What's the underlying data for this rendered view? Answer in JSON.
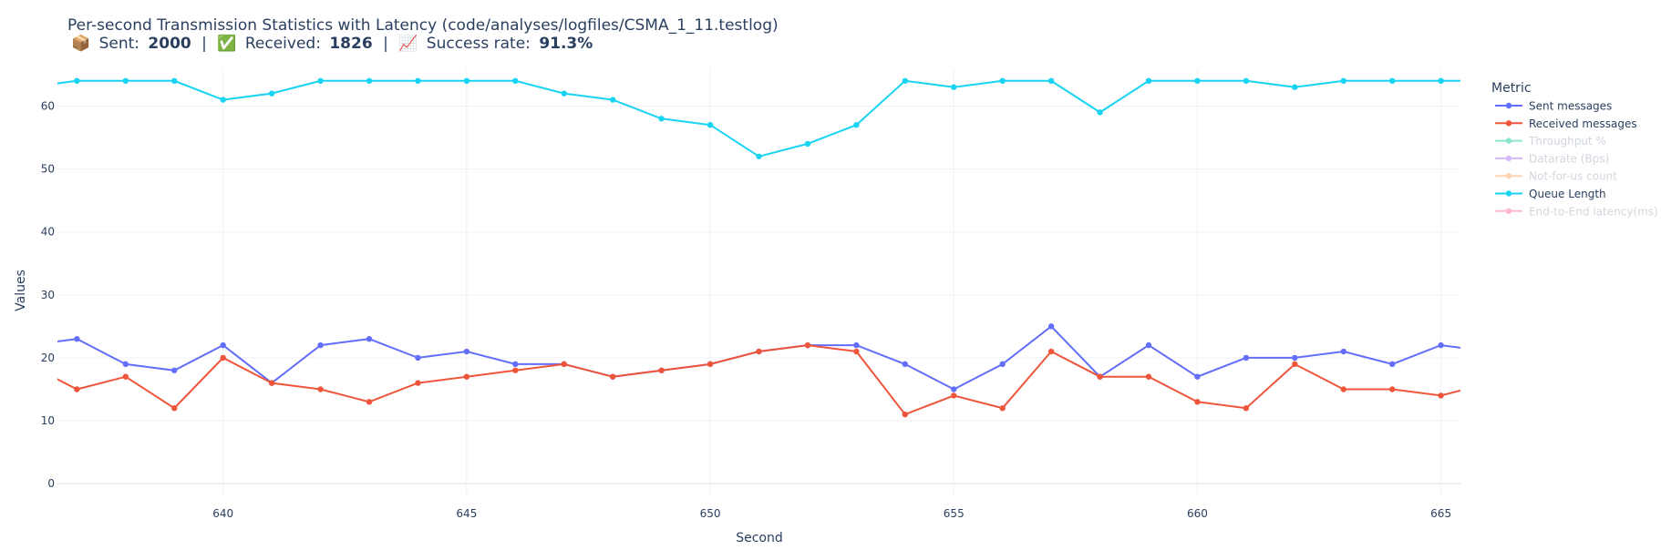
{
  "chart_data": {
    "type": "line",
    "title": "Per-second Transmission Statistics with Latency (code/analyses/logfiles/CSMA_1_11.testlog)",
    "subtitle": {
      "sent_icon": "📦",
      "sent_label": "Sent:",
      "sent_value": "2000",
      "received_icon": "✅",
      "received_label": "Received:",
      "received_value": "1826",
      "rate_icon": "📈",
      "rate_label": "Success rate:",
      "rate_value": "91.3%",
      "separator": "|"
    },
    "xlabel": "Second",
    "ylabel": "Values",
    "xlim": [
      636.6,
      665.4
    ],
    "ylim": [
      -2,
      66
    ],
    "xticks": [
      640,
      645,
      650,
      655,
      660,
      665
    ],
    "yticks": [
      0,
      10,
      20,
      30,
      40,
      50,
      60
    ],
    "grid": true,
    "legend_title": "Metric",
    "legend_position": "right",
    "series": [
      {
        "name": "Sent messages",
        "color": "#636efa",
        "visible": true,
        "x": [
          636,
          637,
          638,
          639,
          640,
          641,
          642,
          643,
          644,
          645,
          646,
          647,
          648,
          649,
          650,
          651,
          652,
          653,
          654,
          655,
          656,
          657,
          658,
          659,
          660,
          661,
          662,
          663,
          664,
          665,
          666
        ],
        "values": [
          22,
          23,
          19,
          18,
          22,
          16,
          22,
          23,
          20,
          21,
          19,
          19,
          17,
          18,
          19,
          21,
          22,
          22,
          19,
          15,
          19,
          25,
          17,
          22,
          17,
          20,
          20,
          21,
          19,
          22,
          21
        ]
      },
      {
        "name": "Received messages",
        "color": "#ef553b",
        "visible": true,
        "x": [
          636,
          637,
          638,
          639,
          640,
          641,
          642,
          643,
          644,
          645,
          646,
          647,
          648,
          649,
          650,
          651,
          652,
          653,
          654,
          655,
          656,
          657,
          658,
          659,
          660,
          661,
          662,
          663,
          664,
          665,
          666
        ],
        "values": [
          19,
          15,
          17,
          12,
          20,
          16,
          15,
          13,
          16,
          17,
          18,
          19,
          17,
          18,
          19,
          21,
          22,
          21,
          11,
          14,
          12,
          21,
          17,
          17,
          13,
          12,
          19,
          15,
          15,
          14,
          16
        ]
      },
      {
        "name": "Throughput %",
        "color": "#00cc96",
        "visible": false
      },
      {
        "name": "Datarate (Bps)",
        "color": "#ab63fa",
        "visible": false
      },
      {
        "name": "Not-for-us count",
        "color": "#ffa15a",
        "visible": false
      },
      {
        "name": "Queue Length",
        "color": "#19d3f3",
        "visible": true,
        "x": [
          636,
          637,
          638,
          639,
          640,
          641,
          642,
          643,
          644,
          645,
          646,
          647,
          648,
          649,
          650,
          651,
          652,
          653,
          654,
          655,
          656,
          657,
          658,
          659,
          660,
          661,
          662,
          663,
          664,
          665,
          666
        ],
        "values": [
          63,
          64,
          64,
          64,
          61,
          62,
          64,
          64,
          64,
          64,
          64,
          62,
          61,
          58,
          57,
          52,
          54,
          57,
          64,
          63,
          64,
          64,
          59,
          64,
          64,
          64,
          63,
          64,
          64,
          64,
          64
        ]
      },
      {
        "name": "End-to-End latency(ms)",
        "color": "#ff6692",
        "visible": false
      }
    ]
  }
}
